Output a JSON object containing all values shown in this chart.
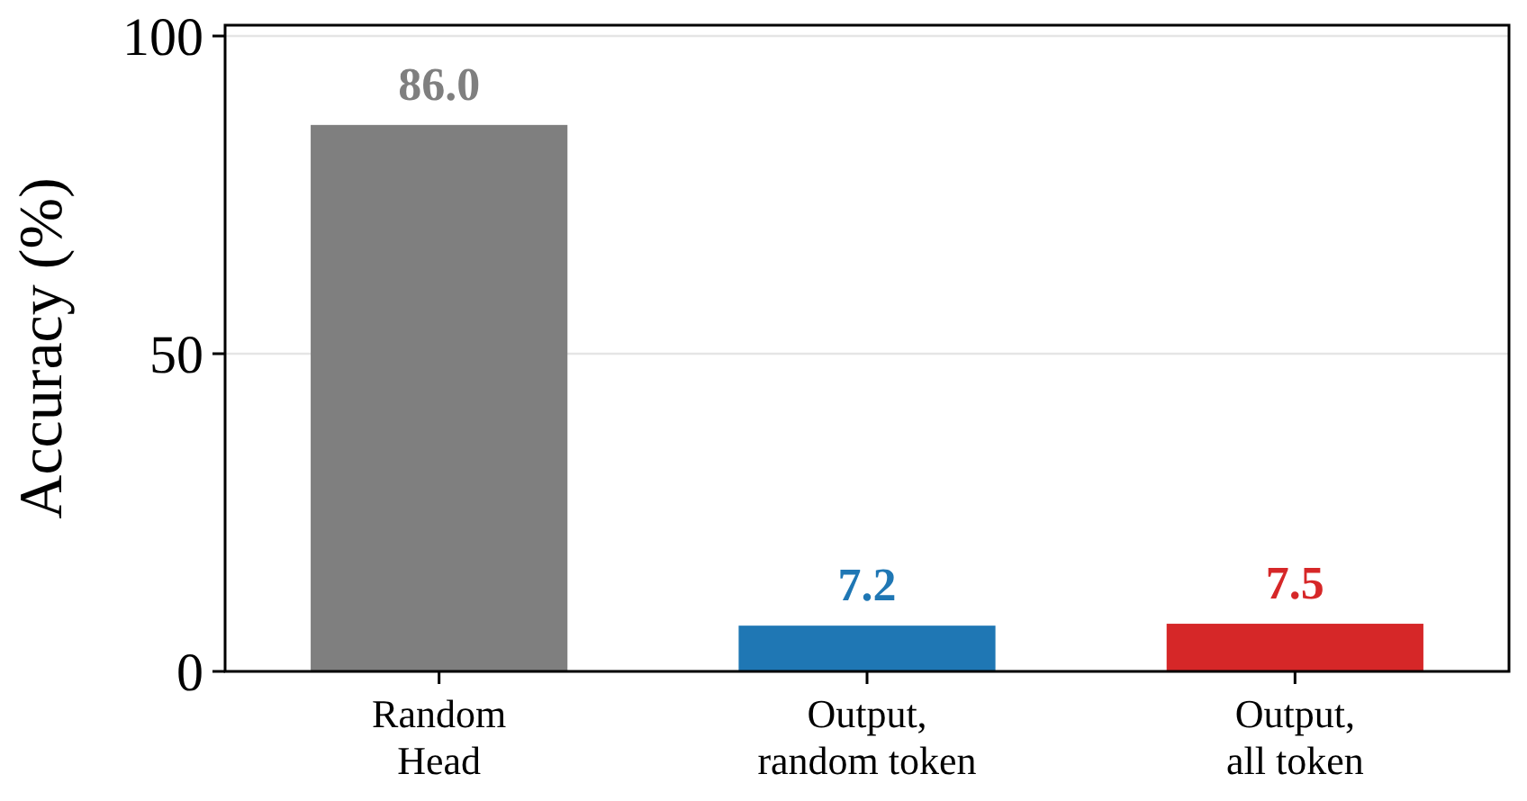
{
  "chart_data": {
    "type": "bar",
    "ylabel": "Accuracy (%)",
    "categories": [
      "Random\nHead",
      "Output,\nrandom token",
      "Output,\nall token"
    ],
    "values": [
      86.0,
      7.2,
      7.5
    ],
    "colors": [
      "#7f7f7f",
      "#1f77b4",
      "#d62728"
    ],
    "value_labels": [
      "86.0",
      "7.2",
      "7.5"
    ],
    "ylim": [
      0,
      100
    ],
    "yticks": [
      0,
      50,
      100
    ],
    "grid": "y"
  }
}
